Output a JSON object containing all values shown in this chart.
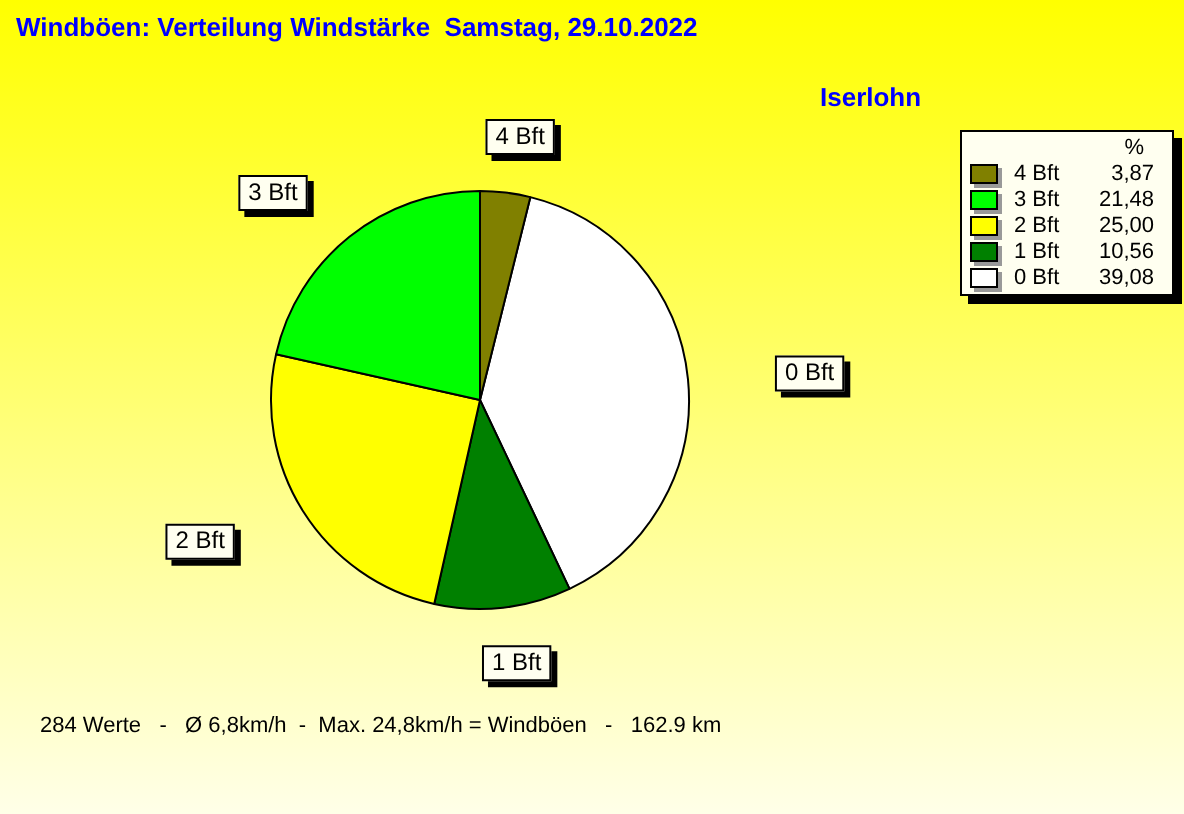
{
  "chart_data": {
    "type": "pie",
    "title": "Windböen: Verteilung Windstärke  Samstag, 29.10.2022",
    "subtitle": "Iserlohn",
    "legend_title": "%",
    "categories": [
      "4 Bft",
      "3 Bft",
      "2 Bft",
      "1 Bft",
      "0 Bft"
    ],
    "values": [
      3.87,
      21.48,
      25.0,
      10.56,
      39.08
    ],
    "value_labels": [
      "3,87",
      "21,48",
      "25,00",
      "10,56",
      "39,08"
    ],
    "colors": [
      "#808000",
      "#00ff00",
      "#ffff00",
      "#008000",
      "#ffffff"
    ],
    "legend": "top right",
    "annotations": [
      "284 Werte   -   Ø 6,8km/h  -  Max. 24,8km/h = Windböen   -   162.9 km"
    ]
  }
}
